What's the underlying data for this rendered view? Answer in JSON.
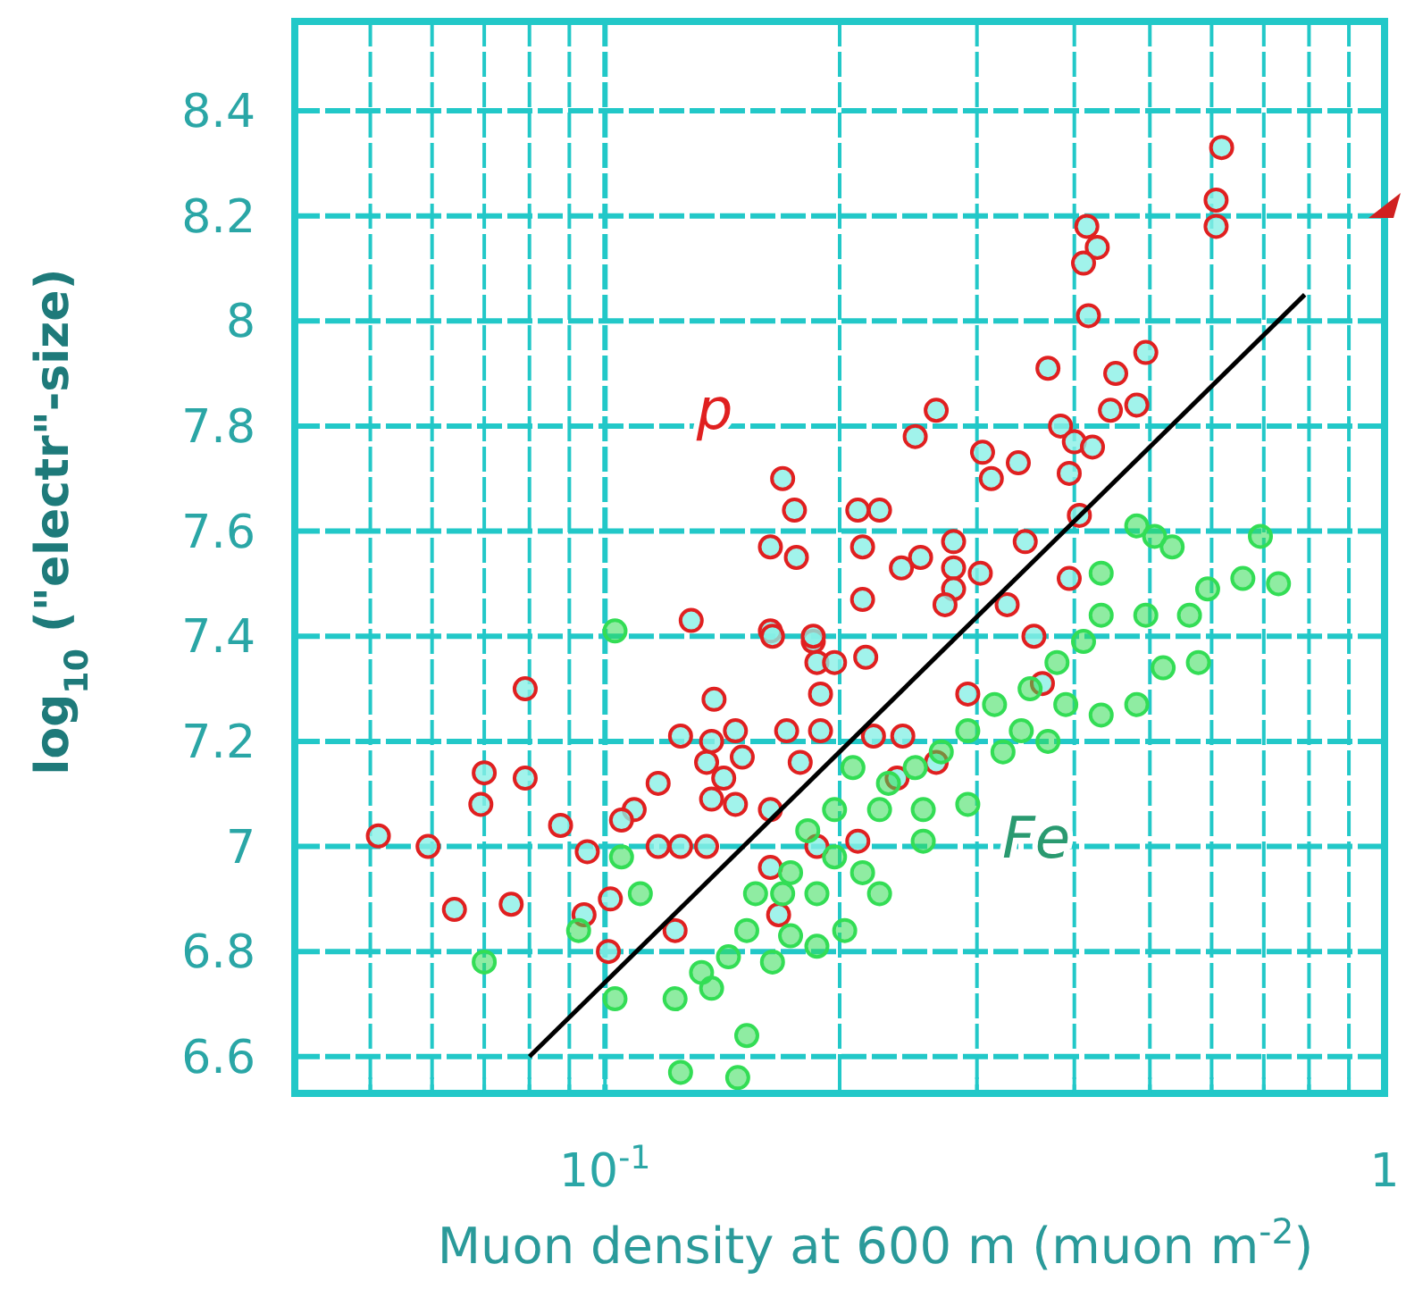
{
  "chart_data": {
    "type": "scatter",
    "xlabel": "Muon density at 600 m (muon m$^{-2}$)",
    "ylabel": "log$_{10}$ (\"electr\"-size)",
    "log": "x",
    "grid": true,
    "legend": false,
    "xlim": [
      0.04,
      1
    ],
    "ylim": [
      6.53,
      8.57
    ],
    "xticks": [
      {
        "value": 0.05,
        "label": null
      },
      {
        "value": 0.06,
        "label": null
      },
      {
        "value": 0.07,
        "label": null
      },
      {
        "value": 0.08,
        "label": null
      },
      {
        "value": 0.09,
        "label": null
      },
      {
        "value": 0.1,
        "label": "10$^{-1}$"
      },
      {
        "value": 0.2,
        "label": null
      },
      {
        "value": 0.3,
        "label": null
      },
      {
        "value": 0.4,
        "label": null
      },
      {
        "value": 0.5,
        "label": null
      },
      {
        "value": 0.6,
        "label": null
      },
      {
        "value": 0.7,
        "label": null
      },
      {
        "value": 0.8,
        "label": null
      },
      {
        "value": 0.9,
        "label": null
      },
      1
    ],
    "yticks": [
      6.6,
      6.8,
      7,
      7.2,
      7.4,
      7.6,
      7.8,
      8,
      8.2,
      8.4
    ],
    "series": [
      {
        "name": "p",
        "marker": "circle",
        "color": "#e02020",
        "x": [
          0.0512,
          0.0593,
          0.0641,
          0.0758,
          0.07,
          0.0693,
          0.079,
          0.079,
          0.0877,
          0.0949,
          0.1016,
          0.094,
          0.101,
          0.123,
          0.129,
          0.163,
          0.169,
          0.175,
          0.163,
          0.176,
          0.185,
          0.187,
          0.197,
          0.189,
          0.138,
          0.125,
          0.137,
          0.147,
          0.15,
          0.135,
          0.142,
          0.117,
          0.109,
          0.105,
          0.137,
          0.147,
          0.163,
          0.117,
          0.125,
          0.135,
          0.171,
          0.189,
          0.178,
          0.163,
          0.167,
          0.187,
          0.618,
          0.608,
          0.608,
          0.415,
          0.428,
          0.411,
          0.417,
          0.37,
          0.452,
          0.494,
          0.445,
          0.481,
          0.384,
          0.4,
          0.422,
          0.394,
          0.406,
          0.305,
          0.339,
          0.313,
          0.266,
          0.25,
          0.211,
          0.225,
          0.214,
          0.24,
          0.254,
          0.28,
          0.28,
          0.303,
          0.28,
          0.273,
          0.328,
          0.346,
          0.394,
          0.214,
          0.185,
          0.216,
          0.237,
          0.266,
          0.221,
          0.241,
          0.364,
          0.355,
          0.292,
          0.211,
          0.164
        ],
        "values": [
          7.02,
          7.0,
          6.88,
          6.89,
          7.14,
          7.08,
          7.13,
          7.3,
          7.04,
          6.99,
          6.9,
          6.87,
          6.8,
          6.84,
          7.43,
          7.41,
          7.7,
          7.64,
          7.57,
          7.55,
          7.39,
          7.35,
          7.35,
          7.29,
          7.28,
          7.21,
          7.2,
          7.22,
          7.17,
          7.16,
          7.13,
          7.12,
          7.07,
          7.05,
          7.09,
          7.08,
          7.07,
          7.0,
          7.0,
          7.0,
          7.22,
          7.22,
          7.16,
          6.96,
          6.87,
          7.0,
          8.33,
          8.23,
          8.18,
          8.18,
          8.14,
          8.11,
          8.01,
          7.91,
          7.9,
          7.94,
          7.83,
          7.84,
          7.8,
          7.77,
          7.76,
          7.71,
          7.63,
          7.75,
          7.73,
          7.7,
          7.83,
          7.78,
          7.64,
          7.64,
          7.57,
          7.53,
          7.55,
          7.58,
          7.53,
          7.52,
          7.49,
          7.46,
          7.46,
          7.58,
          7.51,
          7.47,
          7.4,
          7.36,
          7.13,
          7.16,
          7.21,
          7.21,
          7.31,
          7.4,
          7.29,
          7.01,
          7.4
        ]
      },
      {
        "name": "Fe",
        "marker": "circle",
        "color": "#33dd55",
        "x": [
          0.481,
          0.534,
          0.507,
          0.433,
          0.593,
          0.658,
          0.562,
          0.494,
          0.433,
          0.577,
          0.52,
          0.411,
          0.38,
          0.351,
          0.316,
          0.292,
          0.27,
          0.25,
          0.231,
          0.324,
          0.342,
          0.39,
          0.37,
          0.208,
          0.225,
          0.197,
          0.182,
          0.197,
          0.173,
          0.169,
          0.156,
          0.187,
          0.214,
          0.152,
          0.173,
          0.144,
          0.133,
          0.123,
          0.137,
          0.164,
          0.187,
          0.203,
          0.152,
          0.148,
          0.125,
          0.103,
          0.07,
          0.0925,
          0.105,
          0.111,
          0.225,
          0.256,
          0.256,
          0.292,
          0.433,
          0.481,
          0.103,
          0.693,
          0.731
        ],
        "values": [
          7.61,
          7.57,
          7.59,
          7.52,
          7.49,
          7.51,
          7.44,
          7.44,
          7.44,
          7.35,
          7.34,
          7.39,
          7.35,
          7.3,
          7.27,
          7.22,
          7.18,
          7.15,
          7.12,
          7.18,
          7.22,
          7.27,
          7.2,
          7.15,
          7.07,
          7.07,
          7.03,
          6.98,
          6.95,
          6.91,
          6.91,
          6.91,
          6.95,
          6.84,
          6.83,
          6.79,
          6.76,
          6.71,
          6.73,
          6.78,
          6.81,
          6.84,
          6.64,
          6.56,
          6.57,
          6.71,
          6.78,
          6.84,
          6.98,
          6.91,
          6.91,
          7.01,
          7.07,
          7.08,
          7.25,
          7.27,
          7.41,
          7.59,
          7.5
        ]
      },
      {
        "type": "line",
        "marker": "none",
        "color": "#000000",
        "x": [
          0.08,
          0.79
        ],
        "values": [
          6.6,
          8.05
        ]
      }
    ]
  }
}
